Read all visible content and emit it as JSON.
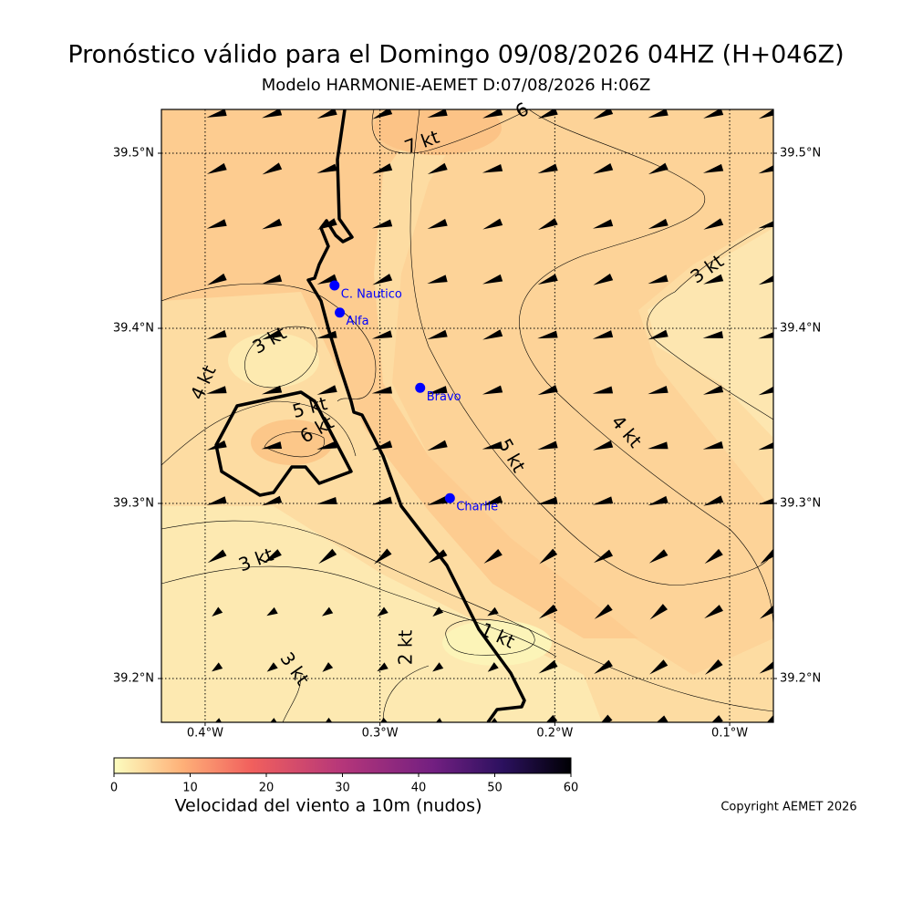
{
  "title": "Pronóstico válido para el Domingo 09/08/2026 04HZ (H+046Z)",
  "subtitle": "Modelo HARMONIE-AEMET D:07/08/2026 H:06Z",
  "map": {
    "lat_range": [
      39.175,
      39.525
    ],
    "lon_range": [
      -0.425,
      -0.075
    ],
    "lat_ticks": [
      {
        "value": 39.2,
        "label": "39.2°N"
      },
      {
        "value": 39.3,
        "label": "39.3°N"
      },
      {
        "value": 39.4,
        "label": "39.4°N"
      },
      {
        "value": 39.5,
        "label": "39.5°N"
      }
    ],
    "lon_ticks": [
      {
        "value": -0.4,
        "label": "0.4°W"
      },
      {
        "value": -0.3,
        "label": "0.3°W"
      },
      {
        "value": -0.2,
        "label": "0.2°W"
      },
      {
        "value": -0.1,
        "label": "0.1°W"
      }
    ],
    "station_color": "blue",
    "stations": [
      {
        "name": "C. Nautico",
        "lat": 39.4245,
        "lon": -0.326
      },
      {
        "name": "Alfa",
        "lat": 39.409,
        "lon": -0.323
      },
      {
        "name": "Bravo",
        "lat": 39.366,
        "lon": -0.277
      },
      {
        "name": "Charlie",
        "lat": 39.303,
        "lon": -0.26
      }
    ],
    "contour_labels": [
      "7 kt",
      "6",
      "3 kt",
      "3 kt",
      "4 kt",
      "5 kt",
      "6 kt",
      "4 kt",
      "5 kt",
      "3 kt",
      "2 kt",
      "1 kt",
      "3 kt"
    ]
  },
  "colorbar": {
    "lim": [
      0,
      60
    ],
    "ticks": [
      0,
      10,
      20,
      30,
      40,
      50,
      60
    ],
    "label": "Velocidad del viento a 10m (nudos)"
  },
  "copyright": "Copyright AEMET 2026"
}
